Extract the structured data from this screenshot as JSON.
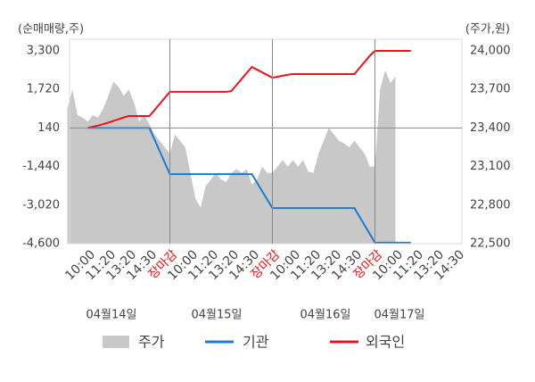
{
  "chart_data": {
    "type": "line",
    "y_label": "(순매매량,주)",
    "y2_label": "(주가,원)",
    "categories": [
      null,
      null,
      null,
      null,
      "10:00",
      null,
      null,
      null,
      "11:20",
      null,
      null,
      null,
      "13:20",
      null,
      null,
      null,
      "14:30",
      null,
      null,
      null,
      "장마감",
      null,
      null,
      null,
      "10:00",
      null,
      null,
      null,
      "11:20",
      null,
      null,
      null,
      "13:20",
      null,
      null,
      null,
      "14:30",
      null,
      null,
      null,
      "장마감",
      null,
      null,
      null,
      "10:00",
      null,
      null,
      null,
      "11:20",
      null,
      null,
      null,
      "13:20",
      null,
      null,
      null,
      "14:30",
      null,
      null,
      null,
      "장마감",
      null,
      null,
      null,
      "10:00",
      null,
      null,
      null,
      "11:20",
      null,
      null,
      null,
      "13:20",
      null,
      null,
      null,
      "14:30"
    ],
    "date_labels": [
      "04월14일",
      "04월15일",
      "04월16일",
      "04월17일"
    ],
    "ylim": [
      -4600,
      3300
    ],
    "yticks": [
      {
        "value": 3300,
        "label": "3,300"
      },
      {
        "value": 1720,
        "label": "1,720"
      },
      140,
      {
        "value": -1440,
        "label": "-1,440"
      },
      {
        "value": -3020,
        "label": "-3,020"
      },
      {
        "value": -4600,
        "label": "-4,600"
      }
    ],
    "y2lim": [
      22500,
      24000
    ],
    "y2ticks": [
      {
        "value": 24000,
        "label": "24,000"
      },
      {
        "value": 23700,
        "label": "23,700"
      },
      {
        "value": 23400,
        "label": "23,400"
      },
      {
        "value": 23100,
        "label": "23,100"
      },
      {
        "value": 22800,
        "label": "22,800"
      },
      {
        "value": 22500,
        "label": "22,500"
      }
    ],
    "series": [
      {
        "name": "주가",
        "color": "#c8c8c8",
        "axis": "y2",
        "style": "area",
        "values": [
          23550,
          23700,
          23500,
          23480,
          23450,
          23500,
          23480,
          23550,
          23650,
          23760,
          23720,
          23650,
          23700,
          23600,
          23450,
          23500,
          23430,
          23350,
          23300,
          23250,
          23200,
          23350,
          23300,
          23250,
          23050,
          22850,
          22780,
          22950,
          23000,
          23050,
          23000,
          22980,
          23050,
          23080,
          23050,
          23080,
          22960,
          23000,
          23100,
          23050,
          23050,
          23100,
          23150,
          23100,
          23150,
          23100,
          23150,
          23060,
          23050,
          23200,
          23300,
          23400,
          23350,
          23300,
          23280,
          23250,
          23300,
          23250,
          23200,
          23100,
          23100,
          23700,
          23850,
          23750,
          23800,
          null,
          null,
          null,
          null,
          null,
          null,
          null,
          null,
          null,
          null,
          null,
          null
        ]
      },
      {
        "name": "기관",
        "color": "#1a7bd0",
        "values": [
          null,
          null,
          null,
          null,
          140,
          140,
          140,
          140,
          140,
          140,
          140,
          140,
          140,
          140,
          140,
          140,
          140,
          -330,
          -800,
          -1280,
          -1750,
          -1750,
          -1750,
          -1750,
          -1750,
          -1750,
          -1750,
          -1750,
          -1750,
          -1750,
          -1750,
          -1750,
          -1750,
          -1750,
          -1750,
          -1750,
          -1750,
          -2100,
          -2450,
          -2800,
          -3140,
          -3140,
          -3140,
          -3140,
          -3140,
          -3140,
          -3140,
          -3140,
          -3140,
          -3140,
          -3140,
          -3140,
          -3140,
          -3140,
          -3140,
          -3140,
          -3140,
          -3500,
          -3850,
          -4200,
          -4560,
          -4560,
          -4560,
          -4560,
          -4560,
          -4560,
          -4560,
          -4560,
          null,
          null,
          null,
          null,
          null,
          null,
          null,
          null,
          null
        ]
      },
      {
        "name": "외국인",
        "color": "#e8141b",
        "values": [
          null,
          null,
          null,
          null,
          140,
          190,
          240,
          300,
          360,
          430,
          500,
          570,
          630,
          630,
          630,
          630,
          630,
          870,
          1120,
          1370,
          1620,
          1620,
          1620,
          1620,
          1620,
          1620,
          1620,
          1620,
          1620,
          1620,
          1620,
          1620,
          1650,
          1900,
          2150,
          2400,
          2640,
          2530,
          2420,
          2310,
          2200,
          2240,
          2280,
          2320,
          2350,
          2350,
          2350,
          2350,
          2350,
          2350,
          2350,
          2350,
          2350,
          2350,
          2350,
          2350,
          2350,
          2600,
          2850,
          3100,
          3300,
          3300,
          3300,
          3300,
          3300,
          3300,
          3300,
          3300,
          null,
          null,
          null,
          null,
          null,
          null,
          null,
          null,
          null
        ]
      }
    ]
  }
}
